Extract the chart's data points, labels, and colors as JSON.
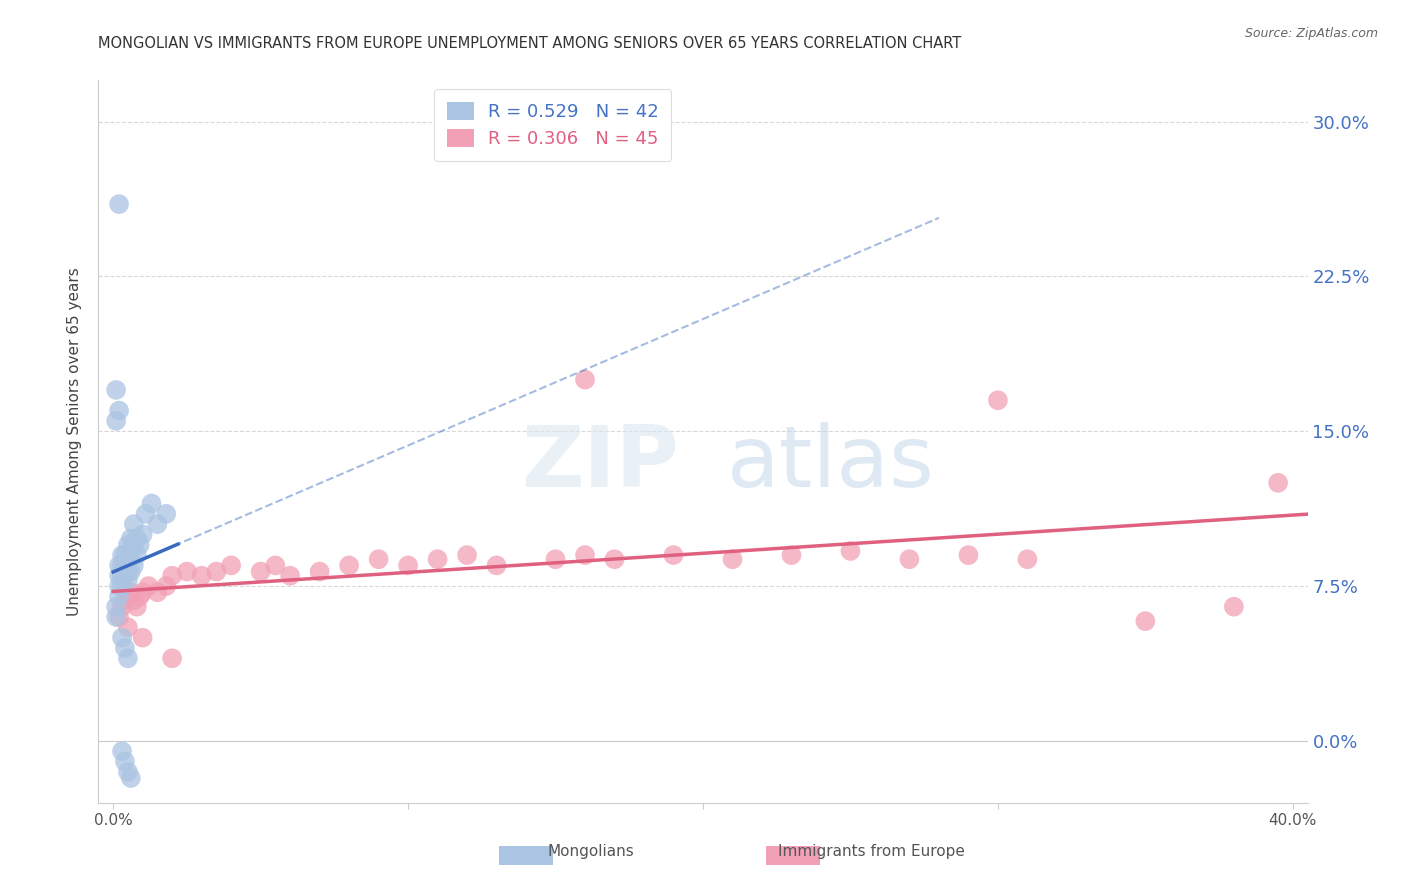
{
  "title": "MONGOLIAN VS IMMIGRANTS FROM EUROPE UNEMPLOYMENT AMONG SENIORS OVER 65 YEARS CORRELATION CHART",
  "source": "Source: ZipAtlas.com",
  "ylabel": "Unemployment Among Seniors over 65 years",
  "ytick_labels": [
    "0.0%",
    "7.5%",
    "15.0%",
    "22.5%",
    "30.0%"
  ],
  "ytick_values": [
    0.0,
    0.075,
    0.15,
    0.225,
    0.3
  ],
  "xlim": [
    -0.005,
    0.405
  ],
  "ylim": [
    -0.03,
    0.32
  ],
  "mongolian_color": "#aac4e2",
  "europe_color": "#f2a0b5",
  "mongolian_line_color": "#3a6abf",
  "europe_line_color": "#e06080",
  "mongolian_R": 0.529,
  "mongolian_N": 42,
  "europe_R": 0.306,
  "europe_N": 45,
  "mongolian_x": [
    0.001,
    0.001,
    0.002,
    0.002,
    0.002,
    0.002,
    0.003,
    0.003,
    0.003,
    0.003,
    0.004,
    0.004,
    0.004,
    0.005,
    0.005,
    0.005,
    0.005,
    0.006,
    0.006,
    0.006,
    0.007,
    0.007,
    0.007,
    0.008,
    0.008,
    0.009,
    0.01,
    0.011,
    0.013,
    0.015,
    0.018,
    0.001,
    0.002,
    0.003,
    0.004,
    0.005,
    0.006,
    0.003,
    0.004,
    0.005,
    0.001,
    0.002
  ],
  "mongolian_y": [
    0.065,
    0.06,
    0.07,
    0.075,
    0.08,
    0.085,
    0.075,
    0.08,
    0.085,
    0.09,
    0.08,
    0.085,
    0.09,
    0.078,
    0.082,
    0.088,
    0.095,
    0.082,
    0.09,
    0.098,
    0.085,
    0.095,
    0.105,
    0.09,
    0.098,
    0.095,
    0.1,
    0.11,
    0.115,
    0.105,
    0.11,
    0.17,
    0.16,
    -0.005,
    -0.01,
    -0.015,
    -0.018,
    0.05,
    0.045,
    0.04,
    0.155,
    0.26
  ],
  "europe_x": [
    0.002,
    0.003,
    0.004,
    0.005,
    0.006,
    0.007,
    0.008,
    0.009,
    0.01,
    0.012,
    0.015,
    0.018,
    0.02,
    0.025,
    0.03,
    0.035,
    0.04,
    0.05,
    0.055,
    0.06,
    0.07,
    0.08,
    0.09,
    0.1,
    0.11,
    0.12,
    0.13,
    0.15,
    0.16,
    0.17,
    0.19,
    0.21,
    0.23,
    0.25,
    0.27,
    0.29,
    0.31,
    0.35,
    0.38,
    0.395,
    0.005,
    0.01,
    0.02,
    0.16,
    0.3
  ],
  "europe_y": [
    0.06,
    0.065,
    0.068,
    0.07,
    0.072,
    0.068,
    0.065,
    0.07,
    0.072,
    0.075,
    0.072,
    0.075,
    0.08,
    0.082,
    0.08,
    0.082,
    0.085,
    0.082,
    0.085,
    0.08,
    0.082,
    0.085,
    0.088,
    0.085,
    0.088,
    0.09,
    0.085,
    0.088,
    0.09,
    0.088,
    0.09,
    0.088,
    0.09,
    0.092,
    0.088,
    0.09,
    0.088,
    0.058,
    0.065,
    0.125,
    0.055,
    0.05,
    0.04,
    0.175,
    0.165
  ],
  "background_color": "#ffffff",
  "grid_color": "#d8d8d8"
}
